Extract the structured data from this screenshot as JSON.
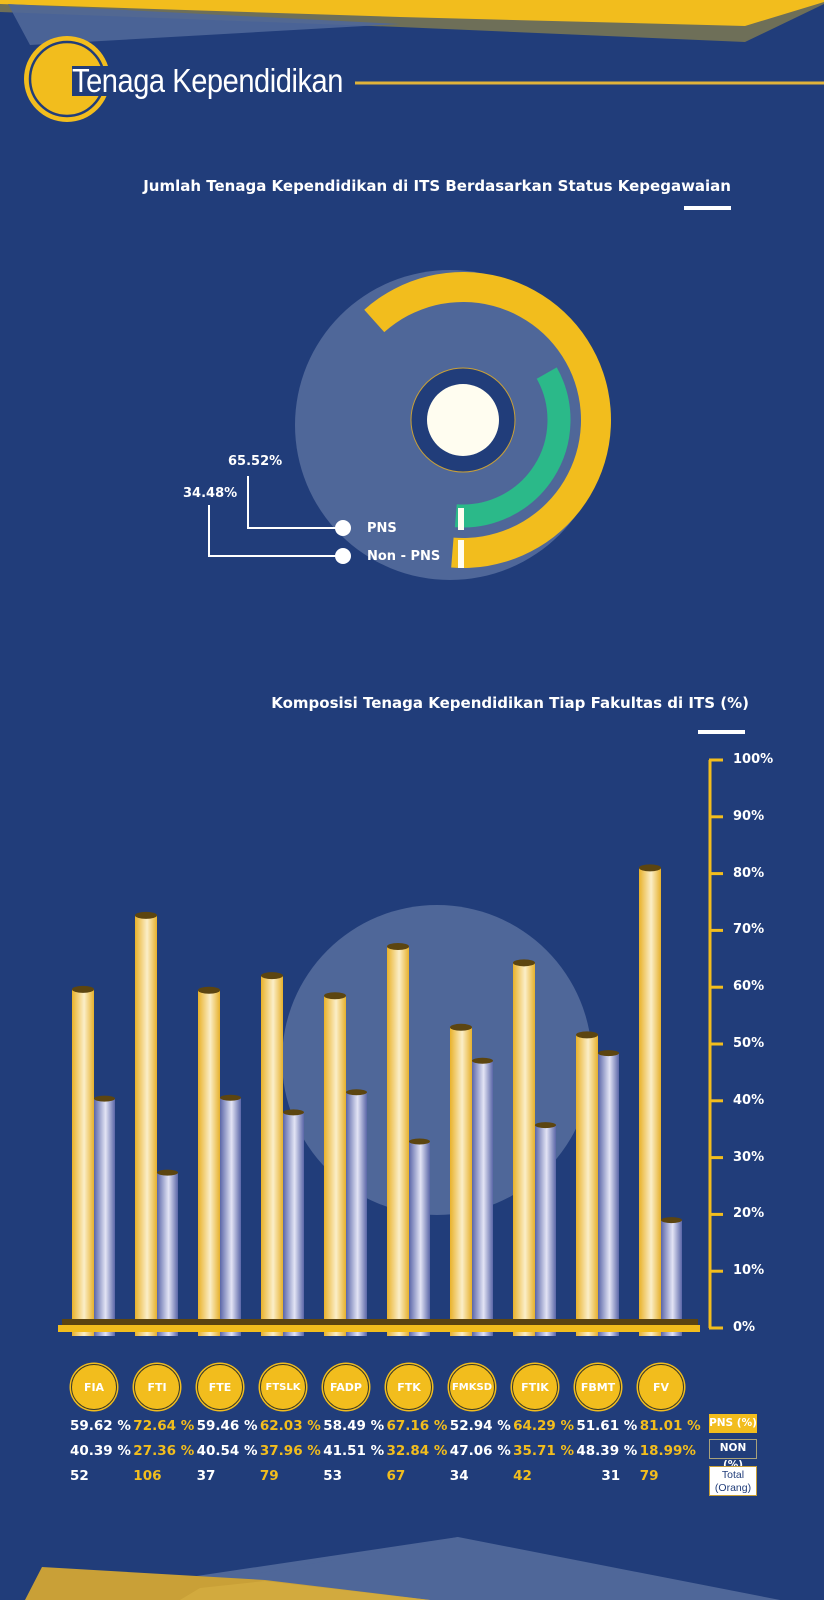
{
  "header": {
    "title": "Tenaga Kependidikan"
  },
  "colors": {
    "background": "#213d7a",
    "accent": "#f2bd1d",
    "green": "#2bb989",
    "light": "#4f6799",
    "non_bar": "#8b93c9"
  },
  "chart_data": [
    {
      "type": "pie",
      "title": "Jumlah Tenaga Kependidikan di ITS Berdasarkan Status Kepegawaian",
      "categories": [
        "PNS",
        "Non - PNS"
      ],
      "values": [
        65.52,
        34.48
      ],
      "value_labels": [
        "65.52%",
        "34.48%"
      ],
      "legend": "bottom-left"
    },
    {
      "type": "bar",
      "title": "Komposisi Tenaga Kependidikan Tiap Fakultas di ITS (%)",
      "categories": [
        "FIA",
        "FTI",
        "FTE",
        "FTSLK",
        "FADP",
        "FTK",
        "FMKSD",
        "FTIK",
        "FBMT",
        "FV"
      ],
      "series": [
        {
          "name": "PNS (%)",
          "values": [
            59.62,
            72.64,
            59.46,
            62.03,
            58.49,
            67.16,
            52.94,
            64.29,
            51.61,
            81.01
          ],
          "labels": [
            "59.62 %",
            "72.64 %",
            "59.46 %",
            "62.03 %",
            "58.49 %",
            "67.16 %",
            "52.94 %",
            "64.29 %",
            "51.61 %",
            "81.01 %"
          ]
        },
        {
          "name": "NON (%)",
          "values": [
            40.39,
            27.36,
            40.54,
            37.96,
            41.51,
            32.84,
            47.06,
            35.71,
            48.39,
            18.99
          ],
          "labels": [
            "40.39 %",
            "27.36 %",
            "40.54 %",
            "37.96 %",
            "41.51 %",
            "32.84 %",
            "47.06 %",
            "35.71 %",
            "48.39 %",
            "18.99%"
          ]
        }
      ],
      "totals": {
        "name": "Total (Orang)",
        "values": [
          "52",
          "106",
          "37",
          "79",
          "53",
          "67",
          "34",
          "42",
          "31",
          "79"
        ]
      },
      "ylim": [
        0,
        100
      ],
      "yticks": [
        "0%",
        "10%",
        "20%",
        "30%",
        "40%",
        "50%",
        "60%",
        "70%",
        "80%",
        "90%",
        "100%"
      ],
      "legend": "bottom-right",
      "legend_labels": {
        "pns": "PNS (%)",
        "non": "NON (%)",
        "total_line1": "Total",
        "total_line2": "(Orang)"
      }
    }
  ]
}
